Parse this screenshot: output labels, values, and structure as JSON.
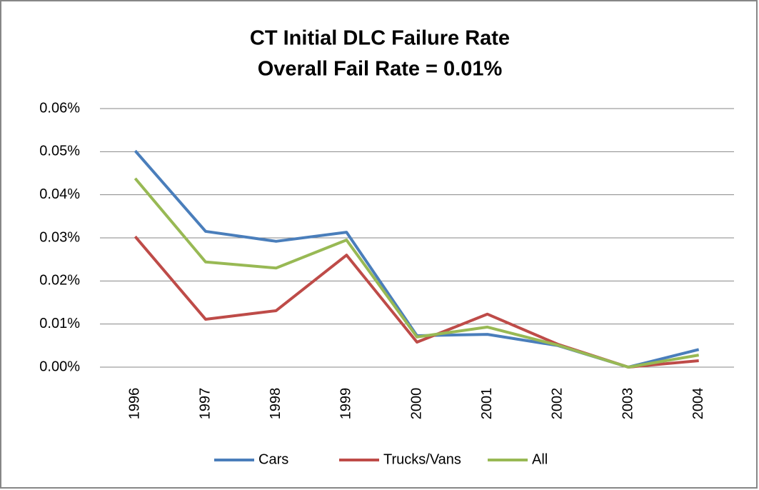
{
  "chart_data": {
    "type": "line",
    "title": "CT Initial DLC Failure Rate",
    "subtitle": "Overall Fail Rate = 0.01%",
    "categories": [
      "1996",
      "1997",
      "1998",
      "1999",
      "2000",
      "2001",
      "2002",
      "2003",
      "2004"
    ],
    "series": [
      {
        "name": "Cars",
        "color": "#4a7ebb",
        "values": [
          0.0502,
          0.0315,
          0.0292,
          0.0313,
          0.0073,
          0.0076,
          0.005,
          0,
          0.0041
        ]
      },
      {
        "name": "Trucks/Vans",
        "color": "#be4b48",
        "values": [
          0.0303,
          0.0111,
          0.0131,
          0.026,
          0.0058,
          0.0123,
          0.0053,
          0,
          0.0015
        ]
      },
      {
        "name": "All",
        "color": "#98b954",
        "values": [
          0.0438,
          0.0244,
          0.023,
          0.0295,
          0.007,
          0.0093,
          0.0051,
          0,
          0.0028
        ]
      }
    ],
    "ylim": [
      0,
      0.06
    ],
    "yticks": [
      {
        "value": 0,
        "label": "0.00%"
      },
      {
        "value": 0.01,
        "label": "0.01%"
      },
      {
        "value": 0.02,
        "label": "0.02%"
      },
      {
        "value": 0.03,
        "label": "0.03%"
      },
      {
        "value": 0.04,
        "label": "0.04%"
      },
      {
        "value": 0.05,
        "label": "0.05%"
      },
      {
        "value": 0.06,
        "label": "0.06%"
      }
    ],
    "grid": true,
    "legend": "bottom"
  }
}
